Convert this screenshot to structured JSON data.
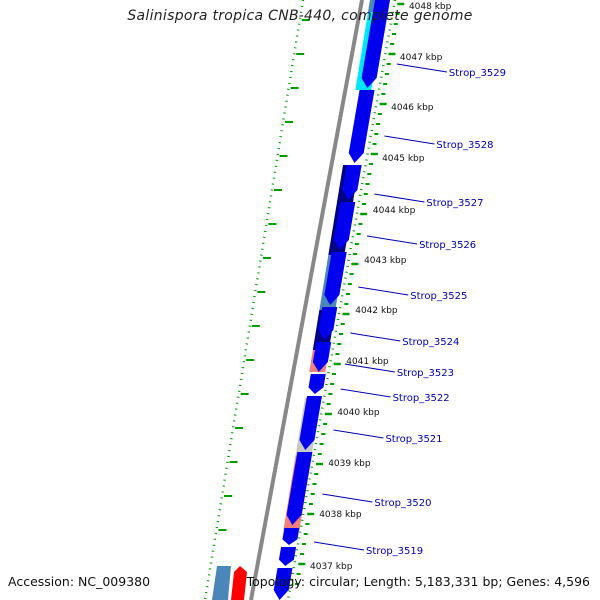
{
  "title": "Salinispora tropica CNB-440, complete genome",
  "footer": {
    "accession": "Accession: NC_009380",
    "summary": "Topology: circular; Length: 5,183,331 bp; Genes: 4,596"
  },
  "kbp_labels": [
    "4048 kbp",
    "4047 kbp",
    "4046 kbp",
    "4045 kbp",
    "4044 kbp",
    "4043 kbp",
    "4042 kbp",
    "4041 kbp",
    "4040 kbp",
    "4039 kbp",
    "4038 kbp",
    "4037 kbp"
  ],
  "gene_labels": [
    "Strop_3529",
    "Strop_3528",
    "Strop_3527",
    "Strop_3526",
    "Strop_3525",
    "Strop_3524",
    "Strop_3523",
    "Strop_3522",
    "Strop_3521",
    "Strop_3520",
    "Strop_3519"
  ],
  "colors": {
    "cds": "#0000ee",
    "blue_dark": "#000080",
    "steel": "#4a86b8",
    "cyan": "#00e5ff",
    "pink": "#f08080",
    "light_gray": "#c8c8c8",
    "red": "#ff0000",
    "backbone": "#888888",
    "gc_dots": "#009900",
    "label_blue": "#0000aa"
  }
}
